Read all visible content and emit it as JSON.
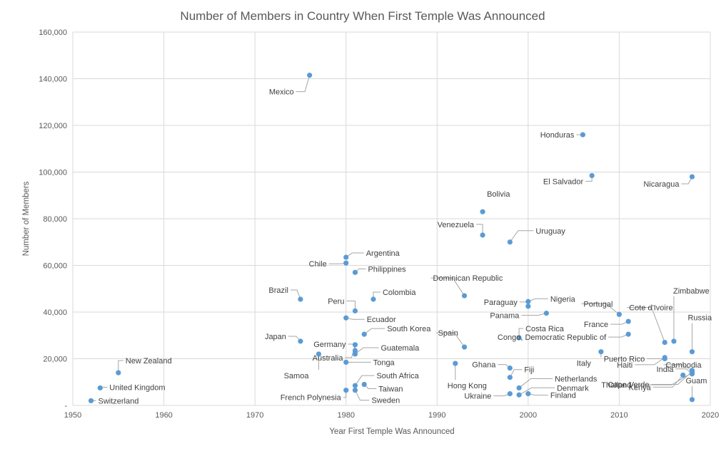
{
  "chart_data": {
    "type": "scatter",
    "title": "Number of Members in Country When First Temple Was Announced",
    "xlabel": "Year First Temple Was Announced",
    "ylabel": "Number of Members",
    "xlim": [
      1950,
      2020
    ],
    "ylim": [
      0,
      160000
    ],
    "grid": true,
    "x_ticks": [
      1950,
      1960,
      1970,
      1980,
      1990,
      2000,
      2010,
      2020
    ],
    "y_ticks": [
      "-",
      "20,000",
      "40,000",
      "60,000",
      "80,000",
      "100,000",
      "120,000",
      "140,000",
      "160,000"
    ],
    "color": "#5b9bd5",
    "points": [
      {
        "label": "Mexico",
        "x": 1976,
        "y": 141500
      },
      {
        "label": "Honduras",
        "x": 2006,
        "y": 116000
      },
      {
        "label": "El Salvador",
        "x": 2007,
        "y": 98500
      },
      {
        "label": "Nicaragua",
        "x": 2018,
        "y": 98000
      },
      {
        "label": "Bolivia",
        "x": 1995,
        "y": 83000
      },
      {
        "label": "Venezuela",
        "x": 1995,
        "y": 73000
      },
      {
        "label": "Uruguay",
        "x": 1998,
        "y": 70000
      },
      {
        "label": "Chile",
        "x": 1980,
        "y": 61000
      },
      {
        "label": "Argentina",
        "x": 1980,
        "y": 63500
      },
      {
        "label": "Philippines",
        "x": 1981,
        "y": 57000
      },
      {
        "label": "Brazil",
        "x": 1975,
        "y": 45500
      },
      {
        "label": "Colombia",
        "x": 1983,
        "y": 45500
      },
      {
        "label": "Dominican Republic",
        "x": 1993,
        "y": 47000
      },
      {
        "label": "Peru",
        "x": 1981,
        "y": 40500
      },
      {
        "label": "Ecuador",
        "x": 1980,
        "y": 37500
      },
      {
        "label": "Paraguay",
        "x": 2000,
        "y": 42500
      },
      {
        "label": "Nigeria",
        "x": 2000,
        "y": 44500
      },
      {
        "label": "Portugal",
        "x": 2010,
        "y": 39000
      },
      {
        "label": "Cote d'Ivoire",
        "x": 2015,
        "y": 27000
      },
      {
        "label": "Zimbabwe",
        "x": 2016,
        "y": 27500
      },
      {
        "label": "Russia",
        "x": 2018,
        "y": 23000
      },
      {
        "label": "Panama",
        "x": 2002,
        "y": 39500
      },
      {
        "label": "France",
        "x": 2011,
        "y": 36000
      },
      {
        "label": "Australia",
        "x": 1981,
        "y": 26000
      },
      {
        "label": "South Korea",
        "x": 1982,
        "y": 30500
      },
      {
        "label": "Japan",
        "x": 1975,
        "y": 27500
      },
      {
        "label": "Germany",
        "x": 1981,
        "y": 23500
      },
      {
        "label": "Guatemala",
        "x": 1981,
        "y": 22000
      },
      {
        "label": "Costa Rica",
        "x": 1999,
        "y": 29000
      },
      {
        "label": "Spain",
        "x": 1993,
        "y": 25000
      },
      {
        "label": "Congo, Democratic Republic of",
        "x": 2011,
        "y": 30500
      },
      {
        "label": "Italy",
        "x": 2008,
        "y": 23000
      },
      {
        "label": "Puerto Rico",
        "x": 2015,
        "y": 20000
      },
      {
        "label": "Cambodia",
        "x": 2018,
        "y": 15000
      },
      {
        "label": "Haiti",
        "x": 2015,
        "y": 20500
      },
      {
        "label": "Thailand",
        "x": 2018,
        "y": 14000
      },
      {
        "label": "New Zealand",
        "x": 1955,
        "y": 14000
      },
      {
        "label": "Samoa",
        "x": 1977,
        "y": 22000
      },
      {
        "label": "Tonga",
        "x": 1980,
        "y": 18500
      },
      {
        "label": "Ghana",
        "x": 1998,
        "y": 16000
      },
      {
        "label": "Fiji",
        "x": 1998,
        "y": 12000
      },
      {
        "label": "Hong Kong",
        "x": 1992,
        "y": 18000
      },
      {
        "label": "South Africa",
        "x": 1981,
        "y": 8500
      },
      {
        "label": "Netherlands",
        "x": 1999,
        "y": 7500
      },
      {
        "label": "Taiwan",
        "x": 1982,
        "y": 9000
      },
      {
        "label": "Denmark",
        "x": 1999,
        "y": 4500
      },
      {
        "label": "United Kingdom",
        "x": 1953,
        "y": 7500
      },
      {
        "label": "French Polynesia",
        "x": 1980,
        "y": 6500
      },
      {
        "label": "Sweden",
        "x": 1981,
        "y": 6500
      },
      {
        "label": "Ukraine",
        "x": 1998,
        "y": 5000
      },
      {
        "label": "Finland",
        "x": 2000,
        "y": 5000
      },
      {
        "label": "Kenya",
        "x": 2017,
        "y": 13000
      },
      {
        "label": "Guam",
        "x": 2018,
        "y": 2500
      },
      {
        "label": "India",
        "x": 2018,
        "y": 13500
      },
      {
        "label": "Cape Verde",
        "x": 2018,
        "y": 14500
      },
      {
        "label": "Switzerland",
        "x": 1952,
        "y": 2000
      }
    ]
  }
}
